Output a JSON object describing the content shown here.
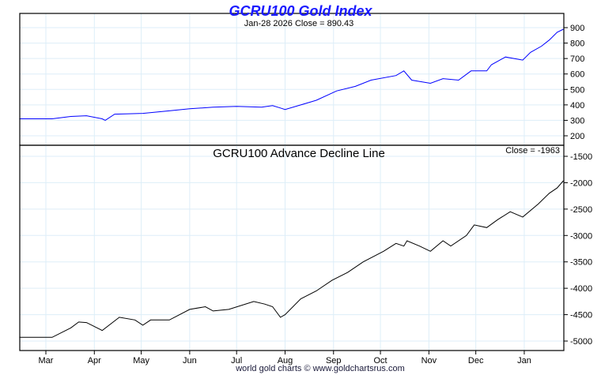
{
  "chart_data": [
    {
      "type": "line",
      "title": "GCRU100 Gold Index",
      "subtitle": "Jan-28  2026   Close = 890.43",
      "color": "#0000ff",
      "ylim": [
        150,
        930
      ],
      "yticks": [
        200,
        300,
        400,
        500,
        600,
        700,
        800,
        900
      ],
      "x_unit": "days from Mar 1 2025",
      "x": [
        -17,
        4,
        16,
        26,
        36,
        38,
        44,
        62,
        77,
        92,
        107,
        122,
        138,
        145,
        150,
        153,
        163,
        173,
        186,
        198,
        208,
        224,
        229,
        234,
        246,
        254,
        264,
        272,
        282,
        285,
        294,
        305,
        310,
        317,
        322,
        327,
        331
      ],
      "y": [
        310,
        310,
        325,
        330,
        310,
        300,
        340,
        345,
        360,
        375,
        385,
        390,
        385,
        395,
        380,
        370,
        400,
        430,
        490,
        520,
        560,
        590,
        620,
        560,
        540,
        570,
        560,
        620,
        620,
        660,
        710,
        690,
        740,
        780,
        820,
        870,
        890
      ]
    },
    {
      "type": "line",
      "title": "GCRU100 Advance Decline Line",
      "subtitle": "Close = -1963",
      "color": "#000000",
      "ylim": [
        -5150,
        -1400
      ],
      "yticks": [
        -1500,
        -2000,
        -2500,
        -3000,
        -3500,
        -4000,
        -4500,
        -5000
      ],
      "x_unit": "days from Mar 1 2025",
      "x": [
        -17,
        4,
        16,
        21,
        26,
        36,
        47,
        57,
        62,
        67,
        79,
        92,
        102,
        107,
        117,
        133,
        140,
        145,
        150,
        153,
        163,
        173,
        183,
        193,
        203,
        216,
        224,
        229,
        231,
        239,
        246,
        254,
        259,
        269,
        274,
        282,
        289,
        297,
        305,
        315,
        322,
        327,
        331
      ],
      "y": [
        -4930,
        -4930,
        -4750,
        -4640,
        -4650,
        -4800,
        -4550,
        -4600,
        -4700,
        -4600,
        -4600,
        -4400,
        -4350,
        -4430,
        -4400,
        -4250,
        -4300,
        -4350,
        -4550,
        -4500,
        -4200,
        -4050,
        -3850,
        -3700,
        -3500,
        -3300,
        -3150,
        -3200,
        -3100,
        -3200,
        -3300,
        -3100,
        -3200,
        -3000,
        -2800,
        -2850,
        -2700,
        -2550,
        -2650,
        -2400,
        -2200,
        -2100,
        -1963
      ]
    }
  ],
  "months": [
    {
      "label": "Mar",
      "day": 0
    },
    {
      "label": "Apr",
      "day": 31
    },
    {
      "label": "May",
      "day": 61
    },
    {
      "label": "Jun",
      "day": 92
    },
    {
      "label": "Jul",
      "day": 122
    },
    {
      "label": "Aug",
      "day": 153
    },
    {
      "label": "Sep",
      "day": 184
    },
    {
      "label": "Oct",
      "day": 214
    },
    {
      "label": "Nov",
      "day": 245
    },
    {
      "label": "Dec",
      "day": 275
    },
    {
      "label": "Jan",
      "day": 306
    }
  ],
  "footer": "world gold charts © www.goldchartsrus.com"
}
